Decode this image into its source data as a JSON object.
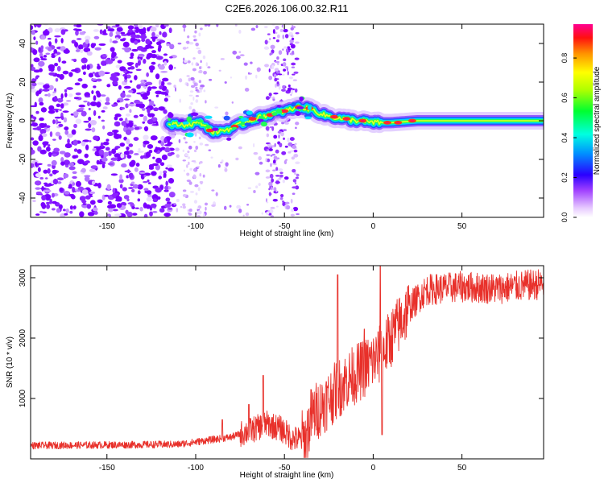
{
  "title": "C2E6.2026.106.00.32.R11",
  "chart_data": [
    {
      "type": "heatmap",
      "title": "C2E6.2026.106.00.32.R11",
      "xlabel": "Height of straight line (km)",
      "ylabel": "Frequency (Hz)",
      "xlim": [
        -193,
        96
      ],
      "ylim": [
        -50,
        50
      ],
      "xticks": [
        "-150",
        "-100",
        "-50",
        "0",
        "50"
      ],
      "yticks": [
        "-40",
        "-20",
        "0",
        "20",
        "40"
      ],
      "colorbar": {
        "label": "Normalized spectral amplitude",
        "range": [
          0,
          0.97
        ],
        "ticks": [
          "0.0",
          "0.2",
          "0.4",
          "0.6",
          "0.8"
        ]
      },
      "ridge": [
        {
          "x": -115,
          "y": -2
        },
        {
          "x": -105,
          "y": -2
        },
        {
          "x": -97,
          "y": -1
        },
        {
          "x": -90,
          "y": -6
        },
        {
          "x": -80,
          "y": -4
        },
        {
          "x": -70,
          "y": 0
        },
        {
          "x": -60,
          "y": 3
        },
        {
          "x": -50,
          "y": 5
        },
        {
          "x": -42,
          "y": 7
        },
        {
          "x": -35,
          "y": 6
        },
        {
          "x": -28,
          "y": 3
        },
        {
          "x": -18,
          "y": 1
        },
        {
          "x": -8,
          "y": 0
        },
        {
          "x": 0,
          "y": -1
        },
        {
          "x": 10,
          "y": -1
        },
        {
          "x": 25,
          "y": 0
        },
        {
          "x": 50,
          "y": 0
        },
        {
          "x": 96,
          "y": 0
        }
      ]
    },
    {
      "type": "line",
      "xlabel": "Height of straight line (km)",
      "ylabel": "SNR (10 * v/v)",
      "xlim": [
        -193,
        96
      ],
      "ylim": [
        0,
        3200
      ],
      "xticks": [
        "-150",
        "-100",
        "-50",
        "0",
        "50"
      ],
      "yticks": [
        "1000",
        "2000",
        "3000"
      ],
      "color": "#e8302a",
      "envelope": [
        {
          "x": -193,
          "y": 220
        },
        {
          "x": -150,
          "y": 230
        },
        {
          "x": -110,
          "y": 240
        },
        {
          "x": -95,
          "y": 300
        },
        {
          "x": -80,
          "y": 360
        },
        {
          "x": -68,
          "y": 480
        },
        {
          "x": -60,
          "y": 580
        },
        {
          "x": -52,
          "y": 500
        },
        {
          "x": -45,
          "y": 330
        },
        {
          "x": -38,
          "y": 320
        },
        {
          "x": -35,
          "y": 700
        },
        {
          "x": -25,
          "y": 1000
        },
        {
          "x": -15,
          "y": 1300
        },
        {
          "x": -5,
          "y": 1500
        },
        {
          "x": 5,
          "y": 1750
        },
        {
          "x": 12,
          "y": 2100
        },
        {
          "x": 20,
          "y": 2500
        },
        {
          "x": 30,
          "y": 2800
        },
        {
          "x": 50,
          "y": 2850
        },
        {
          "x": 70,
          "y": 2820
        },
        {
          "x": 96,
          "y": 2900
        }
      ],
      "spikes": [
        {
          "x": -85,
          "y": 650
        },
        {
          "x": -70,
          "y": 900
        },
        {
          "x": -62,
          "y": 1380
        },
        {
          "x": -20,
          "y": 3050
        },
        {
          "x": -5,
          "y": 2150
        },
        {
          "x": 4,
          "y": 3200
        },
        {
          "x": 5,
          "y": 400
        }
      ]
    }
  ]
}
